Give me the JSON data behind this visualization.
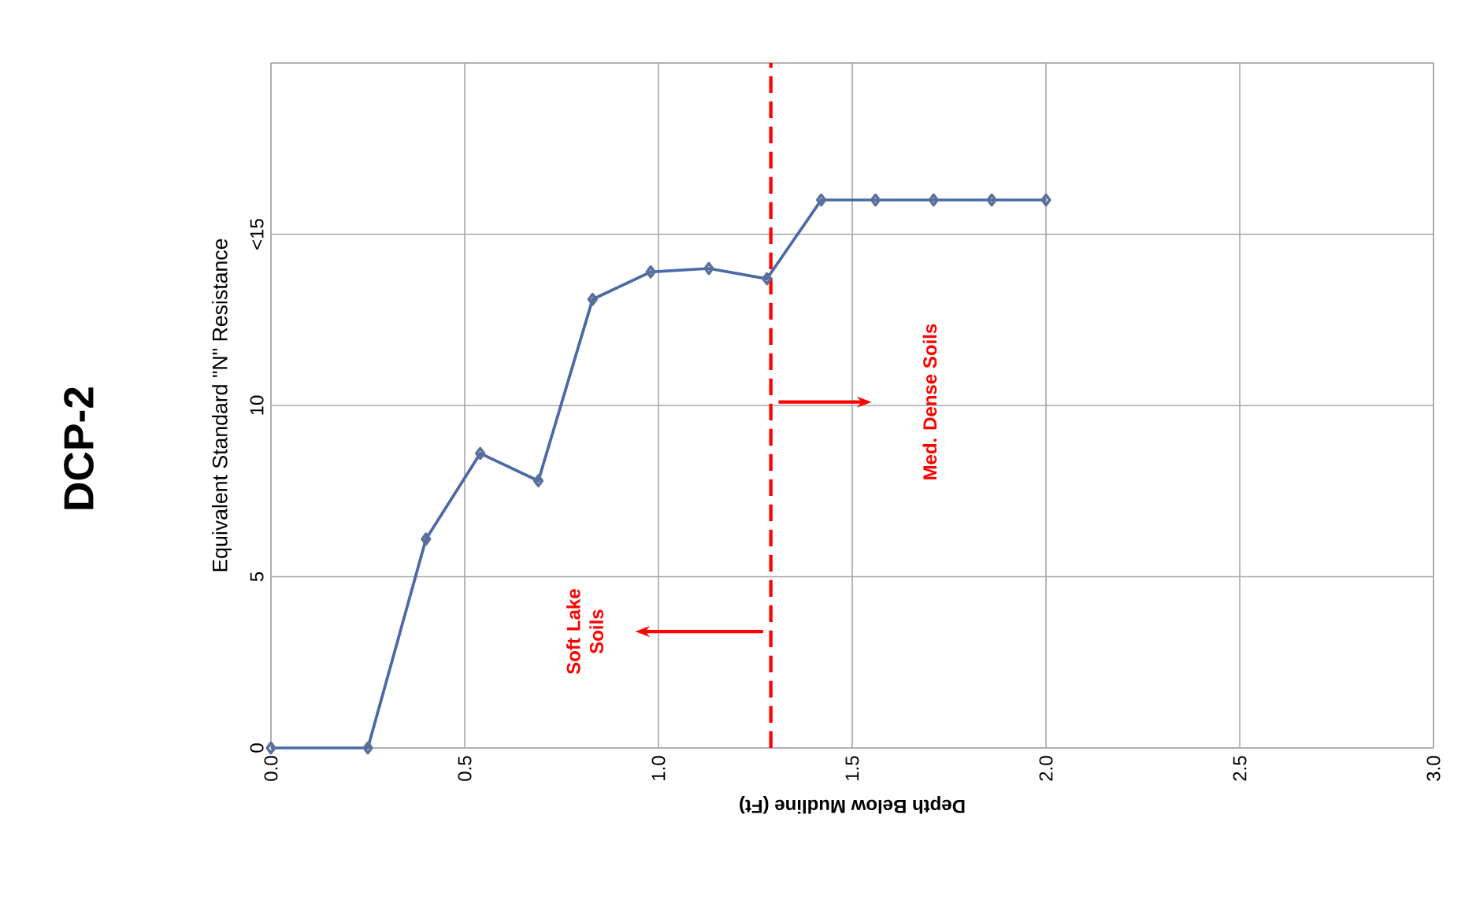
{
  "chart_data": {
    "type": "line",
    "title": "DCP-2",
    "xlabel": "Depth Below  Mudline (Ft)",
    "ylabel": "Equivalent Standard \"N\" Resistance",
    "x": [
      0,
      0.25,
      0.4,
      0.54,
      0.69,
      0.83,
      0.98,
      1.13,
      1.28,
      1.42,
      1.56,
      1.71,
      1.86,
      2.0
    ],
    "series": [
      {
        "color": "#4a6aa5",
        "values": [
          0,
          0,
          6.1,
          8.6,
          7.8,
          13.1,
          13.9,
          14.0,
          13.7,
          16.0,
          16.0,
          16.0,
          16.0,
          16.0
        ]
      }
    ],
    "xlim": [
      0,
      3
    ],
    "xticks": [
      {
        "value": 0,
        "label": "0.0"
      },
      {
        "value": 0.5,
        "label": "0.5"
      },
      {
        "value": 1,
        "label": "1.0"
      },
      {
        "value": 1.5,
        "label": "1.5"
      },
      {
        "value": 2,
        "label": "2.0"
      },
      {
        "value": 2.5,
        "label": "2.5"
      },
      {
        "value": 3,
        "label": "3.0"
      }
    ],
    "ylim": [
      0,
      20
    ],
    "yticks": [
      0,
      5,
      10,
      {
        "value": 15,
        "label": "<15"
      },
      {
        "value": 20,
        "label": null
      }
    ],
    "ref_lines": [
      {
        "axis": "x",
        "value": 1.29,
        "color": "#ff0000",
        "line_style": "dashed"
      }
    ],
    "annotations": [
      "Soft Lake\nSoils",
      "Med. Dense Soils"
    ],
    "grid": true,
    "marker": "diamond",
    "line_style": "solid"
  }
}
